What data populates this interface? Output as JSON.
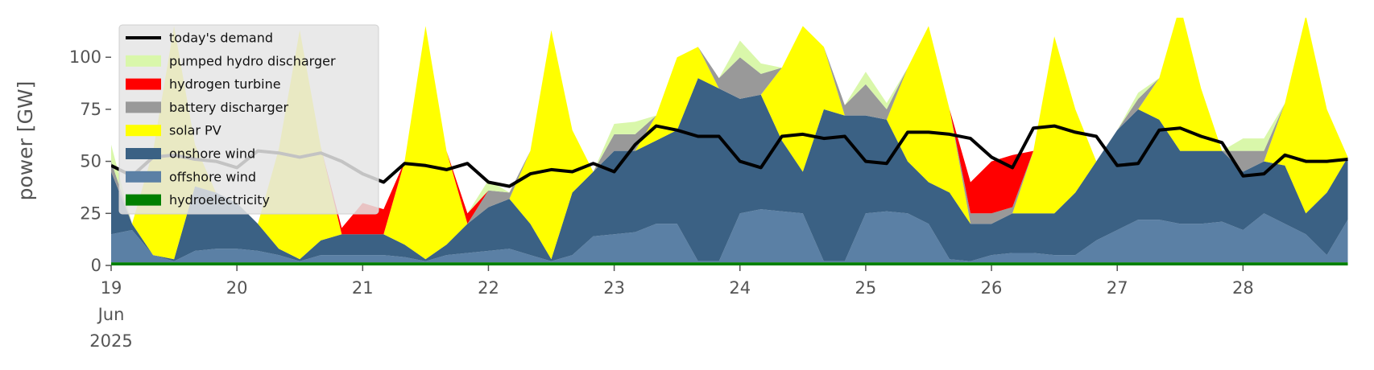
{
  "chart_data": {
    "type": "stacked-area",
    "ylabel": "power [GW]",
    "ylim": [
      0,
      119
    ],
    "yticks": [
      0,
      25,
      50,
      75,
      100
    ],
    "xlim": [
      "2025-06-19T00:00",
      "2025-06-28T23:00"
    ],
    "xticks": [
      {
        "value": "2025-06-19T00:00",
        "label": "19 Jun 2025"
      },
      {
        "value": "2025-06-20T00:00",
        "label": "20"
      },
      {
        "value": "2025-06-21T00:00",
        "label": "21"
      },
      {
        "value": "2025-06-22T00:00",
        "label": "22"
      },
      {
        "value": "2025-06-23T00:00",
        "label": "23"
      },
      {
        "value": "2025-06-24T00:00",
        "label": "24"
      },
      {
        "value": "2025-06-25T00:00",
        "label": "25"
      },
      {
        "value": "2025-06-26T00:00",
        "label": "26"
      },
      {
        "value": "2025-06-27T00:00",
        "label": "27"
      },
      {
        "value": "2025-06-28T00:00",
        "label": "28"
      }
    ],
    "legend": "upper left",
    "x": [
      "2025-06-19T00:00",
      "2025-06-19T04:00",
      "2025-06-19T08:00",
      "2025-06-19T12:00",
      "2025-06-19T16:00",
      "2025-06-19T20:00",
      "2025-06-20T00:00",
      "2025-06-20T04:00",
      "2025-06-20T08:00",
      "2025-06-20T12:00",
      "2025-06-20T16:00",
      "2025-06-20T20:00",
      "2025-06-21T00:00",
      "2025-06-21T04:00",
      "2025-06-21T08:00",
      "2025-06-21T12:00",
      "2025-06-21T16:00",
      "2025-06-21T20:00",
      "2025-06-22T00:00",
      "2025-06-22T04:00",
      "2025-06-22T08:00",
      "2025-06-22T12:00",
      "2025-06-22T16:00",
      "2025-06-22T20:00",
      "2025-06-23T00:00",
      "2025-06-23T04:00",
      "2025-06-23T08:00",
      "2025-06-23T12:00",
      "2025-06-23T16:00",
      "2025-06-23T20:00",
      "2025-06-24T00:00",
      "2025-06-24T04:00",
      "2025-06-24T08:00",
      "2025-06-24T12:00",
      "2025-06-24T16:00",
      "2025-06-24T20:00",
      "2025-06-25T00:00",
      "2025-06-25T04:00",
      "2025-06-25T08:00",
      "2025-06-25T12:00",
      "2025-06-25T16:00",
      "2025-06-25T20:00",
      "2025-06-26T00:00",
      "2025-06-26T04:00",
      "2025-06-26T08:00",
      "2025-06-26T12:00",
      "2025-06-26T16:00",
      "2025-06-26T20:00",
      "2025-06-27T00:00",
      "2025-06-27T04:00",
      "2025-06-27T08:00",
      "2025-06-27T12:00",
      "2025-06-27T16:00",
      "2025-06-27T20:00",
      "2025-06-28T00:00",
      "2025-06-28T04:00",
      "2025-06-28T08:00",
      "2025-06-28T12:00",
      "2025-06-28T16:00",
      "2025-06-28T20:00"
    ],
    "line": {
      "name": "today's demand",
      "color": "#000000",
      "values": [
        48,
        43,
        52,
        53,
        51,
        50,
        47,
        55,
        54,
        52,
        54,
        50,
        44,
        40,
        49,
        48,
        46,
        49,
        40,
        38,
        44,
        46,
        45,
        49,
        45,
        58,
        67,
        65,
        62,
        62,
        50,
        47,
        62,
        63,
        61,
        62,
        50,
        49,
        64,
        64,
        63,
        61,
        52,
        47,
        66,
        67,
        64,
        62,
        48,
        49,
        65,
        66,
        62,
        59,
        43,
        44,
        53,
        50,
        50,
        51
      ]
    },
    "series": [
      {
        "name": "hydroelectricity",
        "color": "#008000",
        "values": [
          1.5,
          1.5,
          1.5,
          1.5,
          1.5,
          1.5,
          1.5,
          1.5,
          1.5,
          1.5,
          1.5,
          1.5,
          1.5,
          1.5,
          1.5,
          1.5,
          1.5,
          1.5,
          1.5,
          1.5,
          1.5,
          1.5,
          1.5,
          1.5,
          1.5,
          1.5,
          1.5,
          1.5,
          1.5,
          1.5,
          1.5,
          1.5,
          1.5,
          1.5,
          1.5,
          1.5,
          1.5,
          1.5,
          1.5,
          1.5,
          1.5,
          1.5,
          1.5,
          1.5,
          1.5,
          1.5,
          1.5,
          1.5,
          1.5,
          1.5,
          1.5,
          1.5,
          1.5,
          1.5,
          1.5,
          1.5,
          1.5,
          1.5,
          1.5,
          1.5
        ]
      },
      {
        "name": "offshore wind",
        "color": "#5b80a5",
        "values": [
          13.5,
          15.5,
          3.5,
          0.5,
          5.5,
          6.5,
          6.5,
          5.5,
          3.5,
          0.5,
          3.5,
          3.5,
          3.5,
          3.5,
          2.5,
          0.5,
          3.5,
          4.5,
          5.5,
          6.5,
          3.5,
          0.5,
          3.5,
          12.5,
          13.5,
          14.5,
          18.5,
          18.5,
          0.5,
          0.5,
          23.5,
          25.5,
          24.5,
          23.5,
          0.5,
          0.5,
          23.5,
          24.5,
          23.5,
          18.5,
          1.5,
          0.5,
          3.5,
          4.5,
          4.5,
          3.5,
          3.5,
          10.5,
          15.5,
          20.5,
          20.5,
          18.5,
          18.5,
          19.5,
          15.5,
          23.5,
          18.5,
          13.5,
          3.5,
          20.5
        ]
      },
      {
        "name": "onshore wind",
        "color": "#3b6184",
        "values": [
          30,
          3,
          0,
          1,
          31,
          27,
          22,
          13,
          3,
          1,
          7,
          10,
          10,
          10,
          6,
          1,
          5,
          14,
          21,
          24,
          15,
          1,
          30,
          31,
          40,
          39,
          40,
          45,
          88,
          83,
          55,
          55,
          34,
          20,
          73,
          70,
          47,
          44,
          25,
          20,
          32,
          18,
          15,
          19,
          19,
          20,
          30,
          38,
          48,
          53,
          48,
          35,
          35,
          34,
          28,
          25,
          28,
          10,
          30,
          30
        ]
      },
      {
        "name": "solar PV",
        "color": "#ffff00",
        "values": [
          0,
          0,
          50,
          112,
          20,
          0,
          0,
          0,
          48,
          110,
          45,
          0,
          0,
          0,
          40,
          112,
          45,
          0,
          0,
          0,
          35,
          110,
          30,
          0,
          0,
          0,
          12,
          35,
          15,
          0,
          0,
          0,
          35,
          70,
          30,
          0,
          0,
          0,
          45,
          75,
          40,
          0,
          0,
          0,
          30,
          85,
          40,
          0,
          0,
          0,
          20,
          70,
          30,
          0,
          0,
          0,
          30,
          95,
          40,
          0
        ]
      },
      {
        "name": "battery discharger",
        "color": "#999999",
        "values": [
          5,
          0,
          0,
          0,
          0,
          0,
          0,
          0,
          0,
          0,
          0,
          0,
          0,
          0,
          0,
          0,
          0,
          0,
          8,
          3,
          0,
          0,
          0,
          0,
          8,
          8,
          0,
          0,
          0,
          5,
          20,
          10,
          0,
          0,
          0,
          5,
          15,
          5,
          0,
          0,
          0,
          5,
          5,
          3,
          0,
          0,
          0,
          0,
          0,
          5,
          0,
          0,
          0,
          0,
          10,
          5,
          0,
          0,
          0,
          0
        ]
      },
      {
        "name": "hydrogen turbine",
        "color": "#ff0000",
        "values": [
          0,
          0,
          0,
          0,
          0,
          0,
          0,
          0,
          0,
          0,
          0,
          3,
          15,
          12,
          0,
          0,
          0,
          5,
          0,
          0,
          0,
          0,
          0,
          0,
          0,
          0,
          0,
          0,
          0,
          0,
          0,
          0,
          0,
          0,
          0,
          0,
          0,
          0,
          0,
          0,
          0,
          15,
          25,
          25,
          0,
          0,
          0,
          0,
          0,
          0,
          0,
          0,
          0,
          0,
          0,
          0,
          0,
          0,
          0,
          0
        ]
      },
      {
        "name": "pumped hydro discharger",
        "color": "#d9f7aa",
        "values": [
          8,
          0,
          0,
          0,
          0,
          0,
          0,
          0,
          0,
          0,
          0,
          0,
          0,
          0,
          0,
          0,
          0,
          0,
          5,
          0,
          0,
          0,
          0,
          0,
          5,
          6,
          0,
          0,
          0,
          0,
          8,
          5,
          0,
          0,
          0,
          0,
          6,
          3,
          0,
          0,
          0,
          0,
          0,
          0,
          0,
          0,
          0,
          0,
          0,
          3,
          0,
          0,
          0,
          0,
          6,
          6,
          0,
          0,
          0,
          0
        ]
      }
    ]
  }
}
